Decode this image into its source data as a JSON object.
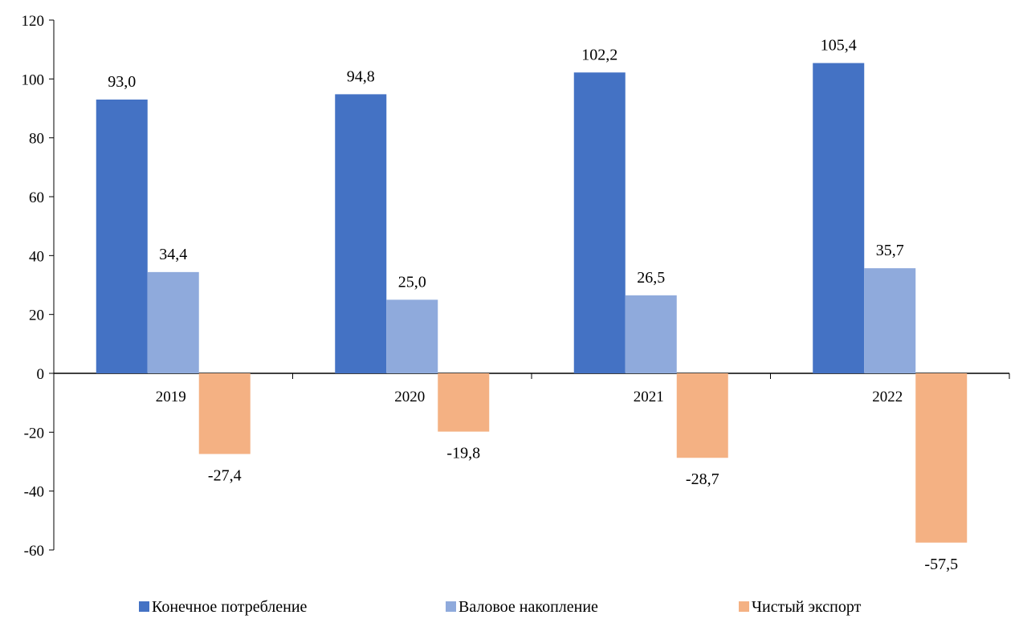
{
  "chart_data": {
    "type": "bar",
    "categories": [
      "2019",
      "2020",
      "2021",
      "2022"
    ],
    "series": [
      {
        "name": "Конечное потребление",
        "color": "#4472c4",
        "values": [
          93.0,
          94.8,
          102.2,
          105.4
        ],
        "labels": [
          "93,0",
          "94,8",
          "102,2",
          "105,4"
        ]
      },
      {
        "name": "Валовое накопление",
        "color": "#8faadc",
        "values": [
          34.4,
          25.0,
          26.5,
          35.7
        ],
        "labels": [
          "34,4",
          "25,0",
          "26,5",
          "35,7"
        ]
      },
      {
        "name": "Чистый экспорт",
        "color": "#f4b183",
        "values": [
          -27.4,
          -19.8,
          -28.7,
          -57.5
        ],
        "labels": [
          "-27,4",
          "-19,8",
          "-28,7",
          "-57,5"
        ]
      }
    ],
    "ylim": [
      -60,
      120
    ],
    "yticks": [
      -60,
      -40,
      -20,
      0,
      20,
      40,
      60,
      80,
      100,
      120
    ],
    "ytick_labels": [
      "-60",
      "-40",
      "-20",
      "0",
      "20",
      "40",
      "60",
      "80",
      "100",
      "120"
    ],
    "grid": false,
    "legend_position": "bottom",
    "title": "",
    "xlabel": "",
    "ylabel": ""
  }
}
